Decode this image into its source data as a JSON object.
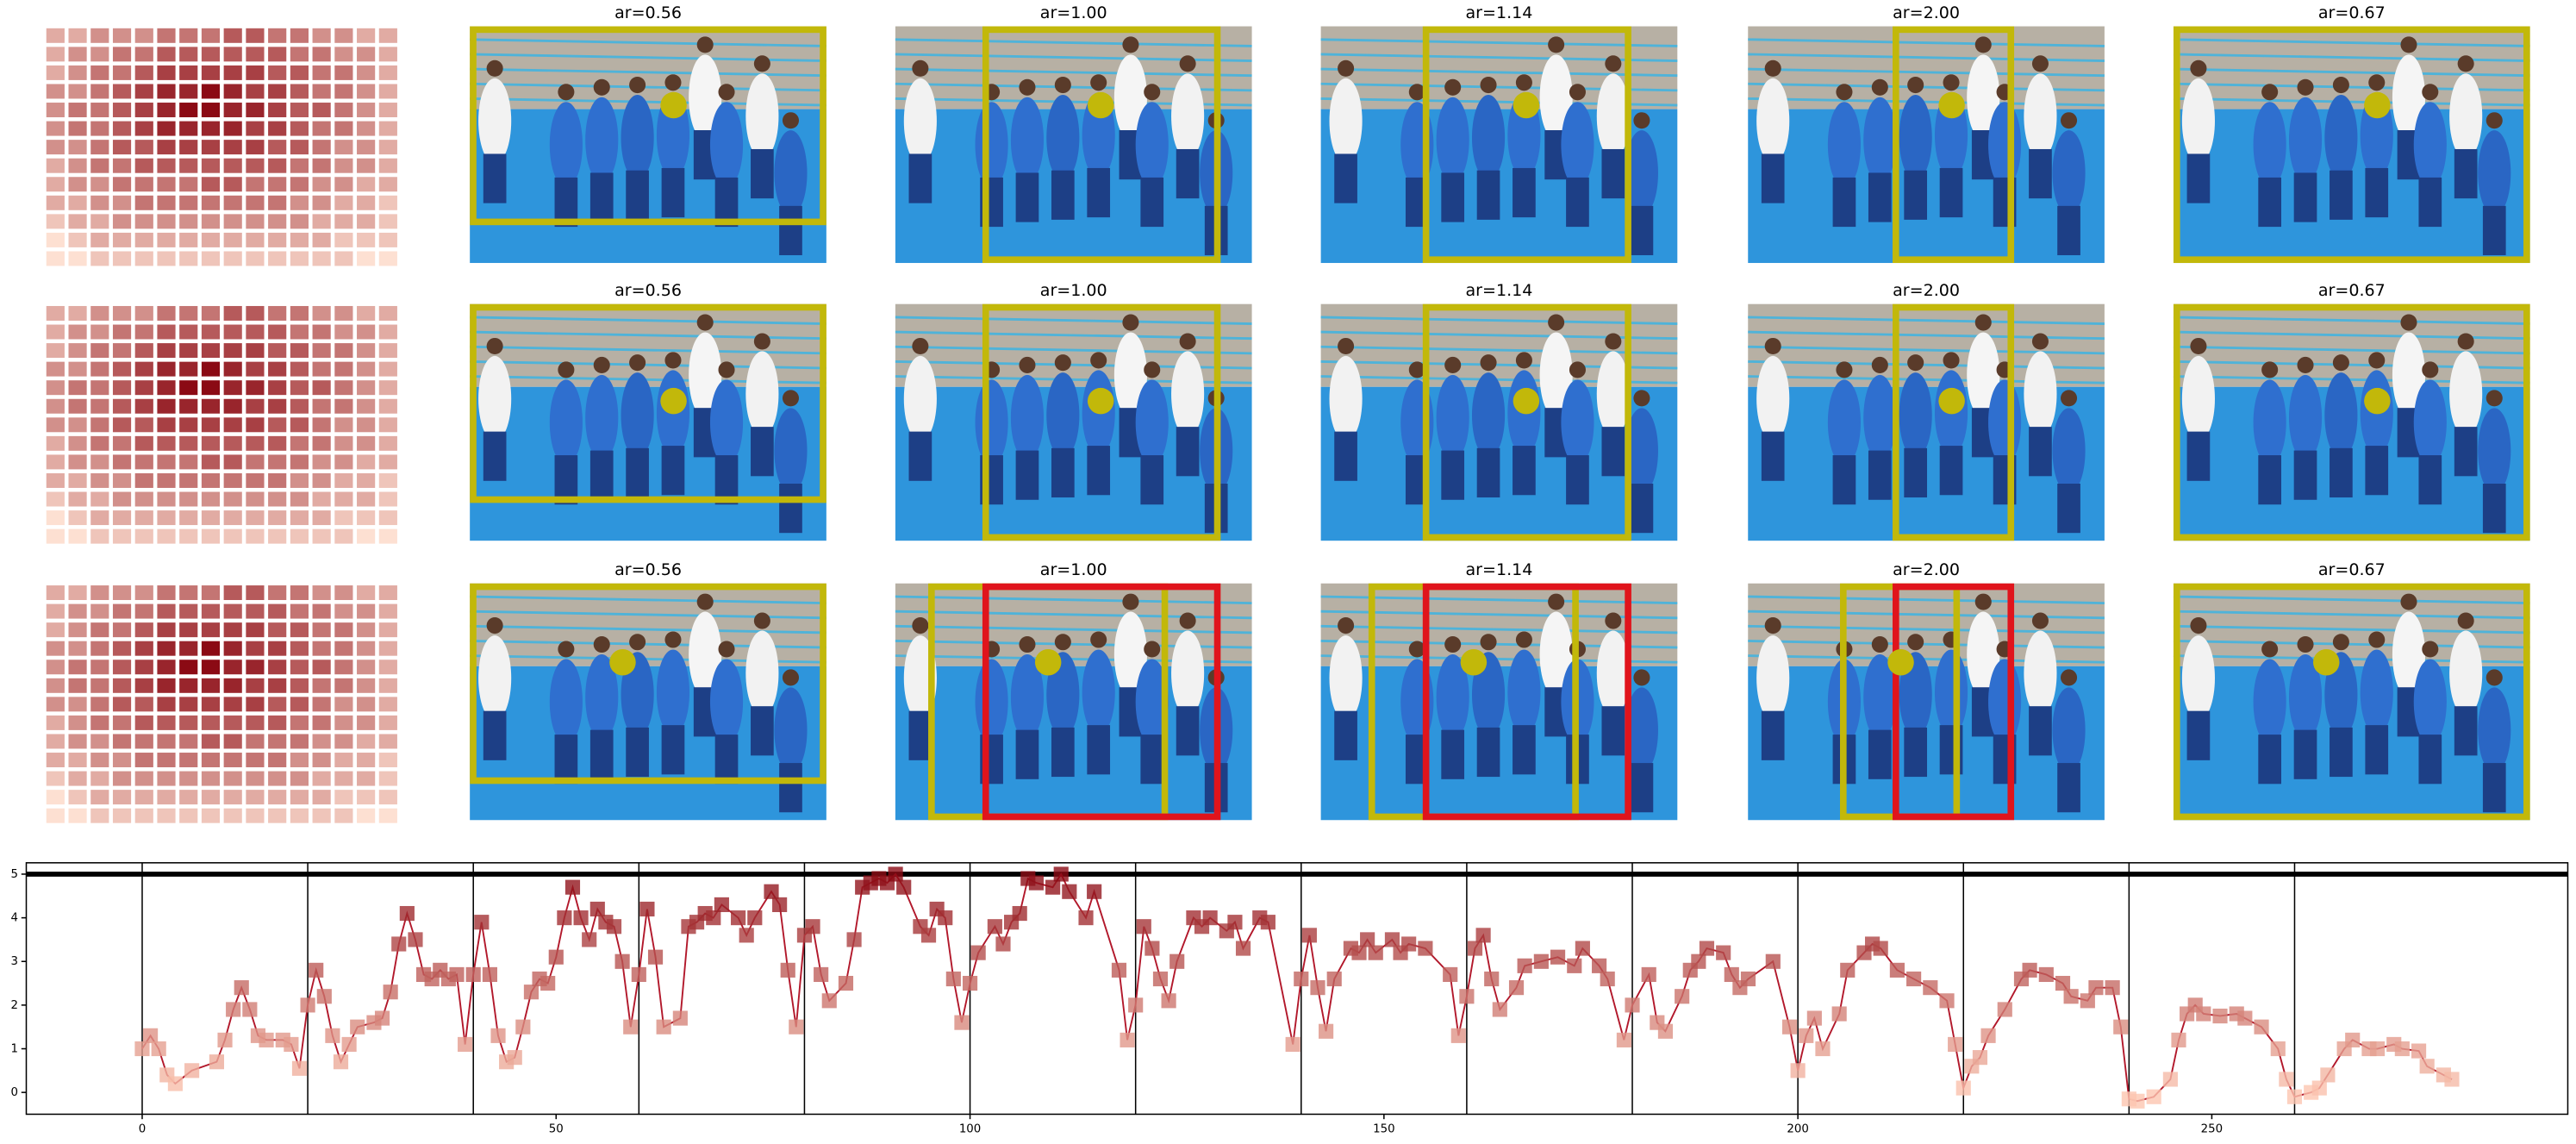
{
  "chart_data": [
    {
      "type": "heatmap",
      "color_range": [
        "#fde0d2",
        "#8b0a14"
      ],
      "clim": [
        1,
        9
      ],
      "values": [
        [
          3,
          3,
          4,
          4,
          4,
          5,
          5,
          5,
          6,
          6,
          5,
          5,
          4,
          4,
          3,
          3
        ],
        [
          3,
          4,
          4,
          5,
          5,
          6,
          6,
          6,
          6,
          6,
          6,
          5,
          5,
          4,
          4,
          3
        ],
        [
          3,
          4,
          5,
          5,
          6,
          7,
          7,
          7,
          7,
          7,
          6,
          6,
          5,
          5,
          4,
          3
        ],
        [
          4,
          4,
          5,
          6,
          7,
          8,
          8,
          9,
          8,
          7,
          7,
          6,
          5,
          5,
          4,
          3
        ],
        [
          4,
          5,
          5,
          6,
          7,
          8,
          9,
          9,
          8,
          8,
          7,
          6,
          6,
          5,
          4,
          3
        ],
        [
          4,
          5,
          5,
          6,
          7,
          8,
          8,
          8,
          8,
          7,
          7,
          6,
          5,
          5,
          4,
          3
        ],
        [
          4,
          4,
          5,
          6,
          6,
          7,
          7,
          7,
          7,
          7,
          6,
          6,
          5,
          4,
          4,
          3
        ],
        [
          3,
          4,
          5,
          5,
          6,
          6,
          6,
          6,
          6,
          6,
          6,
          5,
          5,
          4,
          4,
          3
        ],
        [
          3,
          4,
          4,
          5,
          5,
          5,
          5,
          6,
          6,
          5,
          5,
          5,
          4,
          4,
          3,
          3
        ],
        [
          3,
          3,
          4,
          4,
          5,
          5,
          5,
          5,
          5,
          5,
          5,
          4,
          4,
          3,
          3,
          2
        ],
        [
          2,
          3,
          3,
          4,
          4,
          4,
          4,
          4,
          4,
          4,
          4,
          4,
          3,
          3,
          3,
          2
        ],
        [
          1,
          2,
          3,
          3,
          3,
          3,
          3,
          3,
          3,
          3,
          3,
          3,
          3,
          2,
          2,
          2
        ],
        [
          1,
          1,
          2,
          2,
          2,
          2,
          2,
          2,
          2,
          2,
          2,
          2,
          2,
          2,
          1,
          1
        ]
      ]
    },
    {
      "type": "line",
      "line_color": "#b2182b",
      "color_range": [
        "#fcc5b0",
        "#8b0a14"
      ],
      "clim": [
        0,
        5
      ],
      "xlim": [
        -14,
        293
      ],
      "ylim": [
        -0.5,
        5.26
      ],
      "xticks": [
        0,
        50,
        100,
        150,
        200,
        250
      ],
      "yticks": [
        0,
        1,
        2,
        3,
        4,
        5
      ],
      "vlines": [
        0,
        20,
        40,
        60,
        80,
        100,
        120,
        140,
        160,
        180,
        200,
        220,
        240,
        260
      ],
      "hline": 5,
      "x": [
        0,
        1,
        2,
        3,
        4,
        6,
        9,
        10,
        11,
        12,
        13,
        14,
        15,
        17,
        18,
        19,
        20,
        21,
        22,
        23,
        24,
        25,
        26,
        28,
        29,
        30,
        31,
        32,
        33,
        34,
        35,
        36,
        37,
        38,
        39,
        40,
        41,
        42,
        43,
        44,
        45,
        46,
        47,
        48,
        49,
        50,
        51,
        52,
        53,
        54,
        55,
        56,
        57,
        58,
        59,
        60,
        61,
        62,
        63,
        65,
        66,
        67,
        68,
        69,
        70,
        72,
        73,
        74,
        76,
        77,
        78,
        79,
        80,
        81,
        82,
        83,
        85,
        86,
        87,
        88,
        89,
        90,
        91,
        92,
        94,
        95,
        96,
        97,
        98,
        99,
        100,
        101,
        103,
        104,
        105,
        106,
        107,
        108,
        110,
        111,
        112,
        114,
        115,
        118,
        119,
        120,
        121,
        122,
        123,
        124,
        125,
        127,
        128,
        129,
        131,
        132,
        133,
        135,
        136,
        139,
        140,
        141,
        142,
        143,
        144,
        146,
        147,
        148,
        149,
        151,
        152,
        153,
        155,
        158,
        159,
        160,
        161,
        162,
        163,
        164,
        166,
        167,
        169,
        171,
        173,
        174,
        176,
        177,
        179,
        180,
        182,
        183,
        184,
        186,
        187,
        188,
        189,
        191,
        192,
        193,
        194,
        197,
        199,
        200,
        201,
        202,
        203,
        205,
        206,
        208,
        209,
        210,
        212,
        214,
        216,
        218,
        219,
        220,
        221,
        222,
        223,
        225,
        227,
        228,
        230,
        232,
        233,
        235,
        236,
        238,
        239,
        240,
        241,
        243,
        245,
        246,
        247,
        248,
        249,
        251,
        253,
        254,
        256,
        258,
        259,
        260,
        262,
        263,
        264,
        266,
        267,
        269,
        270,
        272,
        273,
        275,
        276,
        278,
        279
      ],
      "values": [
        1.0,
        1.3,
        1.0,
        0.4,
        0.2,
        0.5,
        0.7,
        1.2,
        1.9,
        2.4,
        1.9,
        1.3,
        1.2,
        1.2,
        1.1,
        0.55,
        2.0,
        2.8,
        2.2,
        1.3,
        0.7,
        1.1,
        1.5,
        1.6,
        1.7,
        2.3,
        3.4,
        4.1,
        3.5,
        2.7,
        2.6,
        2.8,
        2.6,
        2.7,
        1.1,
        2.7,
        3.9,
        2.7,
        1.3,
        0.7,
        0.8,
        1.5,
        2.3,
        2.6,
        2.5,
        3.1,
        4.0,
        4.7,
        4.0,
        3.5,
        4.2,
        3.9,
        3.8,
        3.0,
        1.5,
        2.7,
        4.2,
        3.1,
        1.5,
        1.7,
        3.8,
        3.9,
        4.1,
        4.0,
        4.3,
        4.0,
        3.6,
        4.0,
        4.6,
        4.3,
        2.8,
        1.5,
        3.6,
        3.8,
        2.7,
        2.1,
        2.5,
        3.5,
        4.7,
        4.8,
        4.9,
        4.8,
        5.0,
        4.7,
        3.8,
        3.6,
        4.2,
        4.0,
        2.6,
        1.6,
        2.5,
        3.2,
        3.8,
        3.4,
        3.9,
        4.1,
        4.9,
        4.8,
        4.7,
        5.0,
        4.6,
        4.0,
        4.6,
        2.8,
        1.2,
        2.0,
        3.8,
        3.3,
        2.6,
        2.1,
        3.0,
        4.0,
        3.8,
        4.0,
        3.7,
        3.9,
        3.3,
        4.0,
        3.9,
        1.1,
        2.6,
        3.6,
        2.4,
        1.4,
        2.6,
        3.3,
        3.2,
        3.5,
        3.2,
        3.5,
        3.2,
        3.4,
        3.3,
        2.7,
        1.3,
        2.2,
        3.3,
        3.6,
        2.6,
        1.9,
        2.4,
        2.9,
        3.0,
        3.1,
        2.9,
        3.3,
        2.9,
        2.6,
        1.2,
        2.0,
        2.7,
        1.6,
        1.4,
        2.2,
        2.8,
        3.0,
        3.3,
        3.2,
        2.7,
        2.4,
        2.6,
        3.0,
        1.5,
        0.5,
        1.3,
        1.7,
        1.0,
        1.8,
        2.8,
        3.2,
        3.4,
        3.3,
        2.8,
        2.6,
        2.4,
        2.1,
        1.1,
        0.1,
        0.6,
        0.8,
        1.3,
        1.9,
        2.6,
        2.8,
        2.7,
        2.5,
        2.2,
        2.1,
        2.4,
        2.4,
        1.5,
        -0.15,
        -0.2,
        -0.1,
        0.3,
        1.2,
        1.8,
        2.0,
        1.8,
        1.75,
        1.8,
        1.7,
        1.5,
        1.0,
        0.3,
        -0.1,
        0.0,
        0.1,
        0.4,
        1.0,
        1.2,
        1.0,
        1.0,
        1.1,
        1.0,
        0.95,
        0.6,
        0.4,
        0.3
      ]
    }
  ],
  "panels": {
    "titles": [
      [
        "ar=0.56",
        "ar=1.00",
        "ar=1.14",
        "ar=2.00",
        "ar=0.67"
      ],
      [
        "ar=0.56",
        "ar=1.00",
        "ar=1.14",
        "ar=2.00",
        "ar=0.67"
      ],
      [
        "ar=0.56",
        "ar=1.00",
        "ar=1.14",
        "ar=2.00",
        "ar=0.67"
      ]
    ]
  }
}
